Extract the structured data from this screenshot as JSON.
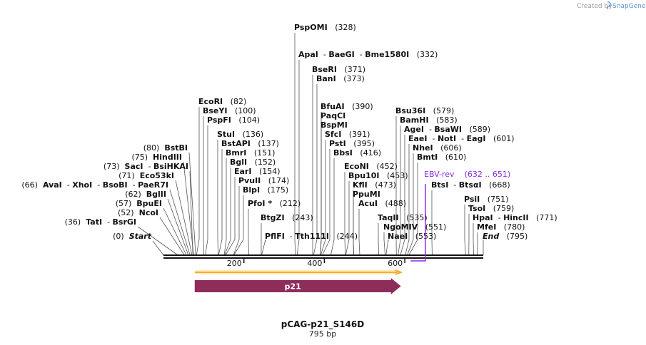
{
  "credit": {
    "prefix": "Created by",
    "brand": "SnapGene"
  },
  "plasmid": {
    "name": "pCAG-p21_S146D",
    "length_label": "795 bp",
    "length": 795
  },
  "ruler": {
    "ticks": [
      200,
      400,
      600
    ]
  },
  "features": {
    "orf": {
      "start": 83,
      "end": 585,
      "color": "#f5a623",
      "direction": "forward"
    },
    "gene": {
      "label": "p21",
      "start": 83,
      "end": 585,
      "color": "#8e2c5a",
      "direction": "forward"
    }
  },
  "primer": {
    "label": "EBV-rev",
    "range": "(632 .. 651)",
    "start": 632,
    "end": 651,
    "color": "#8a2be2"
  },
  "left_sites": [
    {
      "parts": [
        "Start"
      ],
      "pos": "(0)",
      "bp": 0,
      "italic": true
    },
    {
      "parts": [
        "TatI",
        "BsrGI"
      ],
      "pos": "(36)",
      "bp": 36
    },
    {
      "parts": [
        "NcoI"
      ],
      "pos": "(52)",
      "bp": 52
    },
    {
      "parts": [
        "BpuEI"
      ],
      "pos": "(57)",
      "bp": 57
    },
    {
      "parts": [
        "BglII"
      ],
      "pos": "(62)",
      "bp": 62
    },
    {
      "parts": [
        "AvaI",
        "XhoI",
        "BsoBI",
        "PaeR7I"
      ],
      "pos": "(66)",
      "bp": 66
    },
    {
      "parts": [
        "Eco53kI"
      ],
      "pos": "(71)",
      "bp": 71
    },
    {
      "parts": [
        "SacI",
        "BsiHKAI"
      ],
      "pos": "(73)",
      "bp": 73
    },
    {
      "parts": [
        "HindIII"
      ],
      "pos": "(75)",
      "bp": 75
    },
    {
      "parts": [
        "BstBI"
      ],
      "pos": "(80)",
      "bp": 80
    }
  ],
  "right_sites": [
    {
      "parts": [
        "EcoRI"
      ],
      "pos": "(82)",
      "bp": 82
    },
    {
      "parts": [
        "BseYI"
      ],
      "pos": "(100)",
      "bp": 100
    },
    {
      "parts": [
        "PspFI"
      ],
      "pos": "(104)",
      "bp": 104
    },
    {
      "parts": [
        "StuI"
      ],
      "pos": "(136)",
      "bp": 136
    },
    {
      "parts": [
        "BstAPI"
      ],
      "pos": "(137)",
      "bp": 137
    },
    {
      "parts": [
        "BmrI"
      ],
      "pos": "(151)",
      "bp": 151
    },
    {
      "parts": [
        "BglI"
      ],
      "pos": "(152)",
      "bp": 152
    },
    {
      "parts": [
        "EarI"
      ],
      "pos": "(154)",
      "bp": 154
    },
    {
      "parts": [
        "PvuII"
      ],
      "pos": "(174)",
      "bp": 174
    },
    {
      "parts": [
        "BlpI"
      ],
      "pos": "(175)",
      "bp": 175
    },
    {
      "parts": [
        "PfoI *"
      ],
      "pos": "(212)",
      "bp": 212
    },
    {
      "parts": [
        "BtgZI"
      ],
      "pos": "(243)",
      "bp": 243
    },
    {
      "parts": [
        "PflFI",
        "Tth111I"
      ],
      "pos": "(244)",
      "bp": 244
    },
    {
      "parts": [
        "PspOMI"
      ],
      "pos": "(328)",
      "bp": 328
    },
    {
      "parts": [
        "ApaI",
        "BaeGI",
        "Bme1580I"
      ],
      "pos": "(332)",
      "bp": 332
    },
    {
      "parts": [
        "BseRI"
      ],
      "pos": "(371)",
      "bp": 371
    },
    {
      "parts": [
        "BanI"
      ],
      "pos": "(373)",
      "bp": 373
    },
    {
      "parts": [
        "BfuAI"
      ],
      "pos": "(390)",
      "bp": 390
    },
    {
      "parts": [
        "PaqCI"
      ],
      "pos": "",
      "bp": 390
    },
    {
      "parts": [
        "BspMI"
      ],
      "pos": "",
      "bp": 390
    },
    {
      "parts": [
        "SfcI"
      ],
      "pos": "(391)",
      "bp": 391
    },
    {
      "parts": [
        "PstI"
      ],
      "pos": "(395)",
      "bp": 395
    },
    {
      "parts": [
        "BbsI"
      ],
      "pos": "(416)",
      "bp": 416
    },
    {
      "parts": [
        "EcoNI"
      ],
      "pos": "(452)",
      "bp": 452
    },
    {
      "parts": [
        "Bpu10I"
      ],
      "pos": "(453)",
      "bp": 453
    },
    {
      "parts": [
        "KflI"
      ],
      "pos": "(473)",
      "bp": 473
    },
    {
      "parts": [
        "PpuMI"
      ],
      "pos": "",
      "bp": 473
    },
    {
      "parts": [
        "AcuI"
      ],
      "pos": "(488)",
      "bp": 488
    },
    {
      "parts": [
        "TaqII"
      ],
      "pos": "(535)",
      "bp": 535
    },
    {
      "parts": [
        "NgoMIV"
      ],
      "pos": "(551)",
      "bp": 551
    },
    {
      "parts": [
        "NaeI"
      ],
      "pos": "(553)",
      "bp": 553
    },
    {
      "parts": [
        "Bsu36I"
      ],
      "pos": "(579)",
      "bp": 579
    },
    {
      "parts": [
        "BamHI"
      ],
      "pos": "(583)",
      "bp": 583
    },
    {
      "parts": [
        "AgeI",
        "BsaWI"
      ],
      "pos": "(589)",
      "bp": 589
    },
    {
      "parts": [
        "EaeI",
        "NotI",
        "EagI"
      ],
      "pos": "(601)",
      "bp": 601
    },
    {
      "parts": [
        "NheI"
      ],
      "pos": "(606)",
      "bp": 606
    },
    {
      "parts": [
        "BmtI"
      ],
      "pos": "(610)",
      "bp": 610
    },
    {
      "parts": [
        "BtsI",
        "BtsαI"
      ],
      "pos": "(668)",
      "bp": 668
    },
    {
      "parts": [
        "PsiI"
      ],
      "pos": "(751)",
      "bp": 751
    },
    {
      "parts": [
        "TsoI"
      ],
      "pos": "(759)",
      "bp": 759
    },
    {
      "parts": [
        "HpaI",
        "HincII"
      ],
      "pos": "(771)",
      "bp": 771
    },
    {
      "parts": [
        "MfeI"
      ],
      "pos": "(780)",
      "bp": 780
    },
    {
      "parts": [
        "End"
      ],
      "pos": "(795)",
      "bp": 795,
      "italic": true
    }
  ]
}
